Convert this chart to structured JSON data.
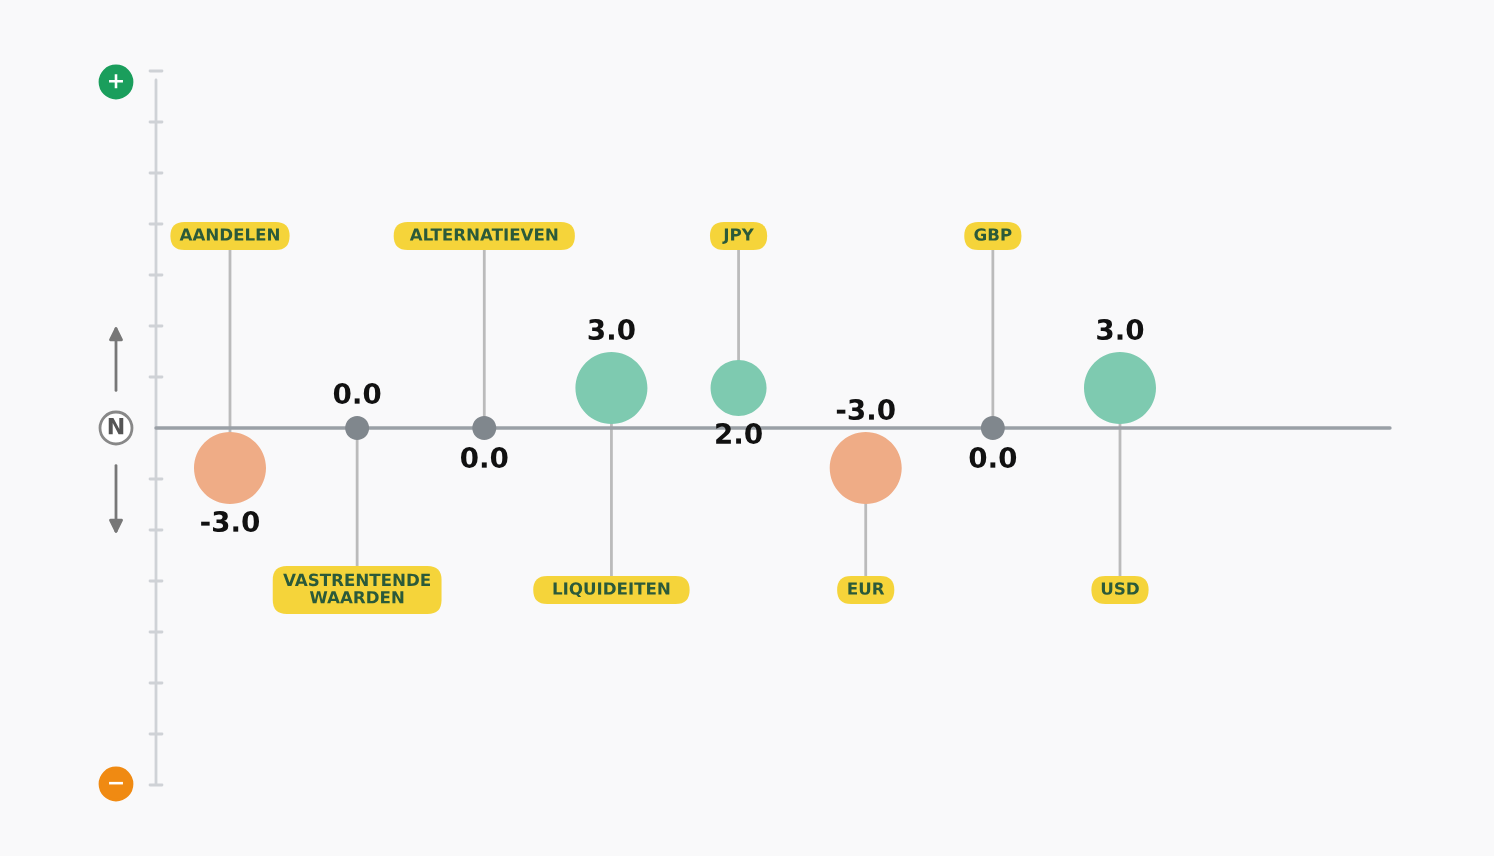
{
  "chart_data": {
    "type": "other",
    "categories": [
      "AANDELEN",
      "VASTRENTENDE\nWAARDEN",
      "ALTERNATIEVEN",
      "LIQUIDEITEN",
      "JPY",
      "EUR",
      "GBP",
      "USD"
    ],
    "values": [
      -3.0,
      0.0,
      0.0,
      3.0,
      2.0,
      -3.0,
      0.0,
      3.0
    ],
    "value_labels": [
      "-3.0",
      "0.0",
      "0.0",
      "3.0",
      "2.0",
      "-3.0",
      "0.0",
      "3.0"
    ],
    "annotations": [
      "+",
      "N",
      "−"
    ]
  }
}
